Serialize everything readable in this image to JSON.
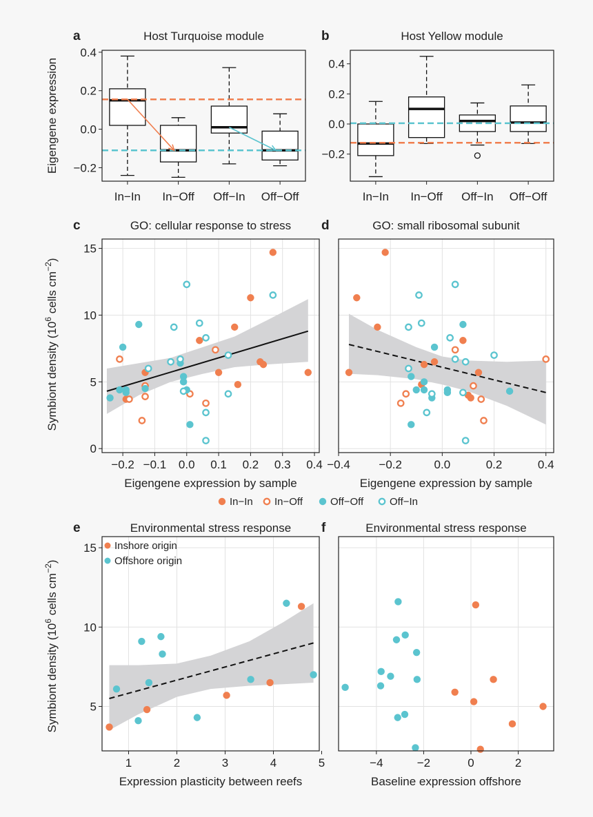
{
  "colors": {
    "inshore": "#f07f4f",
    "offshore": "#5bc4cf",
    "band": "#d4d4d6",
    "grid": "#e2e2e2"
  },
  "legend_cd": [
    "In-In",
    "In-Off",
    "Off-Off",
    "Off-In"
  ],
  "chart_data": [
    {
      "id": "a",
      "panel_label": "a",
      "type": "box",
      "title": "Host Turquoise module",
      "ylabel": "Eigengene expression",
      "ylim": [
        -0.27,
        0.41
      ],
      "yticks": [
        "0.4",
        "0.2",
        "0.0",
        "-0.2"
      ],
      "yticks_values": [
        0.4,
        0.2,
        0.0,
        -0.2
      ],
      "categories": [
        "In-In",
        "In-Off",
        "Off-In",
        "Off-Off"
      ],
      "boxes": [
        {
          "min": -0.24,
          "q1": 0.02,
          "median": 0.15,
          "q3": 0.21,
          "max": 0.38
        },
        {
          "min": -0.25,
          "q1": -0.17,
          "median": -0.11,
          "q3": 0.02,
          "max": 0.06
        },
        {
          "min": -0.18,
          "q1": -0.02,
          "median": 0.01,
          "q3": 0.12,
          "max": 0.32
        },
        {
          "min": -0.19,
          "q1": -0.16,
          "median": -0.11,
          "q3": -0.01,
          "max": 0.08
        }
      ],
      "hlines": [
        {
          "y": 0.155,
          "color": "inshore"
        },
        {
          "y": -0.11,
          "color": "offshore"
        }
      ],
      "arrows": [
        {
          "from": [
            1,
            0.155
          ],
          "to": [
            2,
            -0.11
          ],
          "color": "inshore"
        },
        {
          "from": [
            3,
            0.01
          ],
          "to": [
            4,
            -0.11
          ],
          "color": "offshore"
        }
      ]
    },
    {
      "id": "b",
      "panel_label": "b",
      "type": "box",
      "title": "Host Yellow module",
      "ylabel": "",
      "ylim": [
        -0.38,
        0.49
      ],
      "yticks": [
        "0.4",
        "0.2",
        "0.0",
        "-0.2"
      ],
      "yticks_values": [
        0.4,
        0.2,
        0.0,
        -0.2
      ],
      "categories": [
        "In-In",
        "In-Off",
        "Off-In",
        "Off-Off"
      ],
      "boxes": [
        {
          "min": -0.35,
          "q1": -0.21,
          "median": -0.13,
          "q3": 0.0,
          "max": 0.15
        },
        {
          "min": -0.13,
          "q1": -0.09,
          "median": 0.1,
          "q3": 0.18,
          "max": 0.45
        },
        {
          "min": -0.14,
          "q1": -0.05,
          "median": 0.02,
          "q3": 0.06,
          "max": 0.14,
          "outliers": [
            -0.21
          ]
        },
        {
          "min": -0.13,
          "q1": -0.05,
          "median": 0.01,
          "q3": 0.12,
          "max": 0.26
        }
      ],
      "hlines": [
        {
          "y": 0.005,
          "color": "offshore"
        },
        {
          "y": -0.125,
          "color": "inshore"
        }
      ]
    },
    {
      "id": "c",
      "panel_label": "c",
      "type": "scatter",
      "title": "GO: cellular response to stress",
      "xlabel": "Eigengene expression by sample",
      "ylabel": "Symbiont density",
      "xlim": [
        -0.265,
        0.415
      ],
      "ylim": [
        -0.3,
        15.7
      ],
      "xticks": [
        "-0.2",
        "-0.1",
        "0.0",
        "0.1",
        "0.2",
        "0.3",
        "0.4"
      ],
      "xticks_values": [
        -0.2,
        -0.1,
        0.0,
        0.1,
        0.2,
        0.3,
        0.4
      ],
      "yticks": [
        "0",
        "5",
        "10",
        "15"
      ],
      "yticks_values": [
        0,
        5,
        10,
        15
      ],
      "fit": {
        "x": [
          -0.25,
          0.38
        ],
        "y": [
          4.3,
          8.8
        ],
        "style": "solid"
      },
      "band": {
        "x": [
          -0.25,
          -0.15,
          -0.05,
          0.05,
          0.15,
          0.25,
          0.38
        ],
        "lower": [
          2.6,
          4.0,
          5.0,
          5.6,
          6.1,
          6.3,
          6.5
        ],
        "upper": [
          6.0,
          6.4,
          6.8,
          7.6,
          8.4,
          9.6,
          11.2
        ]
      },
      "points": [
        {
          "x": 0.27,
          "y": 14.7,
          "g": "In-In"
        },
        {
          "x": 0.2,
          "y": 11.3,
          "g": "In-In"
        },
        {
          "x": 0.15,
          "y": 9.1,
          "g": "In-In"
        },
        {
          "x": 0.04,
          "y": 8.1,
          "g": "In-In"
        },
        {
          "x": -0.13,
          "y": 5.7,
          "g": "In-In"
        },
        {
          "x": 0.1,
          "y": 5.7,
          "g": "In-In"
        },
        {
          "x": 0.16,
          "y": 4.8,
          "g": "In-In"
        },
        {
          "x": 0.23,
          "y": 6.5,
          "g": "In-In"
        },
        {
          "x": 0.24,
          "y": 6.3,
          "g": "In-In"
        },
        {
          "x": 0.38,
          "y": 5.7,
          "g": "In-In"
        },
        {
          "x": -0.19,
          "y": 3.7,
          "g": "In-In"
        },
        {
          "x": -0.21,
          "y": 6.7,
          "g": "In-Off"
        },
        {
          "x": 0.09,
          "y": 7.4,
          "g": "In-Off"
        },
        {
          "x": -0.13,
          "y": 4.7,
          "g": "In-Off"
        },
        {
          "x": -0.13,
          "y": 3.9,
          "g": "In-Off"
        },
        {
          "x": -0.18,
          "y": 3.7,
          "g": "In-Off"
        },
        {
          "x": 0.01,
          "y": 4.1,
          "g": "In-Off"
        },
        {
          "x": 0.06,
          "y": 3.4,
          "g": "In-Off"
        },
        {
          "x": -0.14,
          "y": 2.1,
          "g": "In-Off"
        },
        {
          "x": -0.15,
          "y": 9.3,
          "g": "Off-Off"
        },
        {
          "x": -0.2,
          "y": 7.6,
          "g": "Off-Off"
        },
        {
          "x": -0.02,
          "y": 6.4,
          "g": "Off-Off"
        },
        {
          "x": -0.01,
          "y": 5.4,
          "g": "Off-Off"
        },
        {
          "x": -0.01,
          "y": 5.0,
          "g": "Off-Off"
        },
        {
          "x": -0.21,
          "y": 4.4,
          "g": "Off-Off"
        },
        {
          "x": -0.19,
          "y": 4.4,
          "g": "Off-Off"
        },
        {
          "x": -0.19,
          "y": 4.2,
          "g": "Off-Off"
        },
        {
          "x": -0.24,
          "y": 3.8,
          "g": "Off-Off"
        },
        {
          "x": -0.13,
          "y": 4.5,
          "g": "Off-Off"
        },
        {
          "x": 0.0,
          "y": 4.4,
          "g": "Off-Off"
        },
        {
          "x": 0.01,
          "y": 1.8,
          "g": "Off-Off"
        },
        {
          "x": 0.0,
          "y": 12.3,
          "g": "Off-In"
        },
        {
          "x": 0.27,
          "y": 11.5,
          "g": "Off-In"
        },
        {
          "x": -0.04,
          "y": 9.1,
          "g": "Off-In"
        },
        {
          "x": 0.04,
          "y": 9.4,
          "g": "Off-In"
        },
        {
          "x": 0.06,
          "y": 8.3,
          "g": "Off-In"
        },
        {
          "x": 0.13,
          "y": 7.0,
          "g": "Off-In"
        },
        {
          "x": -0.12,
          "y": 6.0,
          "g": "Off-In"
        },
        {
          "x": -0.02,
          "y": 6.7,
          "g": "Off-In"
        },
        {
          "x": -0.05,
          "y": 6.5,
          "g": "Off-In"
        },
        {
          "x": -0.01,
          "y": 4.3,
          "g": "Off-In"
        },
        {
          "x": 0.13,
          "y": 4.1,
          "g": "Off-In"
        },
        {
          "x": 0.06,
          "y": 2.7,
          "g": "Off-In"
        },
        {
          "x": 0.06,
          "y": 0.6,
          "g": "Off-In"
        }
      ]
    },
    {
      "id": "d",
      "panel_label": "d",
      "type": "scatter",
      "title": "GO: small ribosomal subunit",
      "xlabel": "Eigengene expression by sample",
      "ylabel": "",
      "xlim": [
        -0.4,
        0.43
      ],
      "ylim": [
        -0.3,
        15.7
      ],
      "xticks": [
        "-0.4",
        "-0.2",
        "0.0",
        "0.2",
        "0.4"
      ],
      "xticks_values": [
        -0.4,
        -0.2,
        0.0,
        0.2,
        0.4
      ],
      "yticks": [],
      "yticks_values": [
        0,
        5,
        10,
        15
      ],
      "fit": {
        "x": [
          -0.36,
          0.4
        ],
        "y": [
          7.8,
          4.2
        ],
        "style": "dashed"
      },
      "band": {
        "x": [
          -0.36,
          -0.25,
          -0.1,
          0.0,
          0.1,
          0.25,
          0.4
        ],
        "lower": [
          5.6,
          5.5,
          5.2,
          4.8,
          4.3,
          3.2,
          1.8
        ],
        "upper": [
          10.1,
          8.9,
          7.6,
          6.9,
          6.6,
          6.5,
          6.6
        ]
      },
      "points": [
        {
          "x": -0.22,
          "y": 14.7,
          "g": "In-In"
        },
        {
          "x": -0.33,
          "y": 11.3,
          "g": "In-In"
        },
        {
          "x": -0.25,
          "y": 9.1,
          "g": "In-In"
        },
        {
          "x": 0.08,
          "y": 8.1,
          "g": "In-In"
        },
        {
          "x": -0.36,
          "y": 5.7,
          "g": "In-In"
        },
        {
          "x": 0.14,
          "y": 5.7,
          "g": "In-In"
        },
        {
          "x": -0.08,
          "y": 4.8,
          "g": "In-In"
        },
        {
          "x": -0.03,
          "y": 6.5,
          "g": "In-In"
        },
        {
          "x": -0.07,
          "y": 6.3,
          "g": "In-In"
        },
        {
          "x": 0.11,
          "y": 3.8,
          "g": "In-In"
        },
        {
          "x": 0.1,
          "y": 4.0,
          "g": "In-In"
        },
        {
          "x": 0.4,
          "y": 6.7,
          "g": "In-Off"
        },
        {
          "x": 0.05,
          "y": 7.4,
          "g": "In-Off"
        },
        {
          "x": 0.12,
          "y": 4.7,
          "g": "In-Off"
        },
        {
          "x": -0.14,
          "y": 4.1,
          "g": "In-Off"
        },
        {
          "x": -0.16,
          "y": 3.4,
          "g": "In-Off"
        },
        {
          "x": 0.15,
          "y": 3.7,
          "g": "In-Off"
        },
        {
          "x": 0.16,
          "y": 2.1,
          "g": "In-Off"
        },
        {
          "x": 0.08,
          "y": 9.3,
          "g": "Off-Off"
        },
        {
          "x": -0.03,
          "y": 7.6,
          "g": "Off-Off"
        },
        {
          "x": -0.12,
          "y": 5.4,
          "g": "Off-Off"
        },
        {
          "x": -0.07,
          "y": 5.0,
          "g": "Off-Off"
        },
        {
          "x": -0.1,
          "y": 4.4,
          "g": "Off-Off"
        },
        {
          "x": -0.07,
          "y": 4.4,
          "g": "Off-Off"
        },
        {
          "x": 0.02,
          "y": 4.4,
          "g": "Off-Off"
        },
        {
          "x": 0.02,
          "y": 4.2,
          "g": "Off-Off"
        },
        {
          "x": -0.04,
          "y": 3.8,
          "g": "Off-Off"
        },
        {
          "x": 0.26,
          "y": 4.3,
          "g": "Off-Off"
        },
        {
          "x": -0.12,
          "y": 1.8,
          "g": "Off-Off"
        },
        {
          "x": 0.05,
          "y": 12.3,
          "g": "Off-In"
        },
        {
          "x": -0.09,
          "y": 11.5,
          "g": "Off-In"
        },
        {
          "x": -0.08,
          "y": 9.4,
          "g": "Off-In"
        },
        {
          "x": -0.13,
          "y": 9.1,
          "g": "Off-In"
        },
        {
          "x": 0.03,
          "y": 8.3,
          "g": "Off-In"
        },
        {
          "x": 0.2,
          "y": 7.0,
          "g": "Off-In"
        },
        {
          "x": 0.05,
          "y": 6.7,
          "g": "Off-In"
        },
        {
          "x": 0.09,
          "y": 6.5,
          "g": "Off-In"
        },
        {
          "x": -0.13,
          "y": 6.0,
          "g": "Off-In"
        },
        {
          "x": -0.04,
          "y": 4.1,
          "g": "Off-In"
        },
        {
          "x": 0.08,
          "y": 4.2,
          "g": "Off-In"
        },
        {
          "x": -0.06,
          "y": 2.7,
          "g": "Off-In"
        },
        {
          "x": 0.09,
          "y": 0.6,
          "g": "Off-In"
        }
      ]
    },
    {
      "id": "e",
      "panel_label": "e",
      "type": "scatter",
      "title": "Environmental stress response",
      "xlabel": "Expression plasticity between reefs",
      "ylabel": "Symbiont density",
      "xlim": [
        0.45,
        4.95
      ],
      "ylim": [
        2.2,
        15.7
      ],
      "xticks": [
        "1",
        "2",
        "3",
        "4",
        "5"
      ],
      "xticks_values": [
        1,
        2,
        3,
        4,
        5
      ],
      "yticks": [
        "5",
        "10",
        "15"
      ],
      "yticks_values": [
        5,
        10,
        15
      ],
      "fit": {
        "x": [
          0.6,
          4.83
        ],
        "y": [
          5.5,
          9.0
        ],
        "style": "dashed"
      },
      "band": {
        "x": [
          0.6,
          1.2,
          2.0,
          2.7,
          3.5,
          4.2,
          4.83
        ],
        "lower": [
          3.5,
          4.5,
          5.6,
          6.1,
          6.3,
          6.4,
          6.5
        ],
        "upper": [
          7.6,
          7.6,
          7.7,
          8.2,
          9.1,
          10.3,
          11.5
        ]
      },
      "legend": [
        {
          "label": "Inshore origin",
          "color": "inshore"
        },
        {
          "label": "Offshore origin",
          "color": "offshore"
        }
      ],
      "points": [
        {
          "x": 0.6,
          "y": 3.7,
          "o": "inshore"
        },
        {
          "x": 1.38,
          "y": 4.8,
          "o": "inshore"
        },
        {
          "x": 3.03,
          "y": 5.7,
          "o": "inshore"
        },
        {
          "x": 3.93,
          "y": 6.5,
          "o": "inshore"
        },
        {
          "x": 4.58,
          "y": 11.3,
          "o": "inshore"
        },
        {
          "x": 0.75,
          "y": 6.1,
          "o": "offshore"
        },
        {
          "x": 1.2,
          "y": 4.1,
          "o": "offshore"
        },
        {
          "x": 1.27,
          "y": 9.1,
          "o": "offshore"
        },
        {
          "x": 1.42,
          "y": 6.5,
          "o": "offshore"
        },
        {
          "x": 1.67,
          "y": 9.4,
          "o": "offshore"
        },
        {
          "x": 1.7,
          "y": 8.3,
          "o": "offshore"
        },
        {
          "x": 2.42,
          "y": 4.3,
          "o": "offshore"
        },
        {
          "x": 3.53,
          "y": 6.7,
          "o": "offshore"
        },
        {
          "x": 4.27,
          "y": 11.5,
          "o": "offshore"
        },
        {
          "x": 4.83,
          "y": 7.0,
          "o": "offshore"
        }
      ]
    },
    {
      "id": "f",
      "panel_label": "f",
      "type": "scatter",
      "title": "Environmental stress response",
      "xlabel": "Baseline expression offshore",
      "ylabel": "",
      "xlim": [
        -5.6,
        3.5
      ],
      "ylim": [
        2.2,
        15.7
      ],
      "xticks": [
        "-4",
        "-2",
        "0",
        "2"
      ],
      "xticks_values": [
        -4,
        -2,
        0,
        2
      ],
      "yticks": [],
      "yticks_values": [
        5,
        10,
        15
      ],
      "points": [
        {
          "x": 0.2,
          "y": 11.4,
          "o": "inshore"
        },
        {
          "x": 0.95,
          "y": 6.7,
          "o": "inshore"
        },
        {
          "x": -0.68,
          "y": 5.9,
          "o": "inshore"
        },
        {
          "x": 0.12,
          "y": 5.3,
          "o": "inshore"
        },
        {
          "x": 3.05,
          "y": 5.0,
          "o": "inshore"
        },
        {
          "x": 1.75,
          "y": 3.9,
          "o": "inshore"
        },
        {
          "x": 0.4,
          "y": 2.3,
          "o": "inshore"
        },
        {
          "x": -3.08,
          "y": 11.6,
          "o": "offshore"
        },
        {
          "x": -2.78,
          "y": 9.5,
          "o": "offshore"
        },
        {
          "x": -3.15,
          "y": 9.2,
          "o": "offshore"
        },
        {
          "x": -2.3,
          "y": 8.4,
          "o": "offshore"
        },
        {
          "x": -3.8,
          "y": 7.2,
          "o": "offshore"
        },
        {
          "x": -3.4,
          "y": 6.9,
          "o": "offshore"
        },
        {
          "x": -2.28,
          "y": 6.7,
          "o": "offshore"
        },
        {
          "x": -3.82,
          "y": 6.3,
          "o": "offshore"
        },
        {
          "x": -5.32,
          "y": 6.2,
          "o": "offshore"
        },
        {
          "x": -2.8,
          "y": 4.5,
          "o": "offshore"
        },
        {
          "x": -3.1,
          "y": 4.3,
          "o": "offshore"
        },
        {
          "x": -2.35,
          "y": 2.4,
          "o": "offshore"
        }
      ]
    }
  ]
}
